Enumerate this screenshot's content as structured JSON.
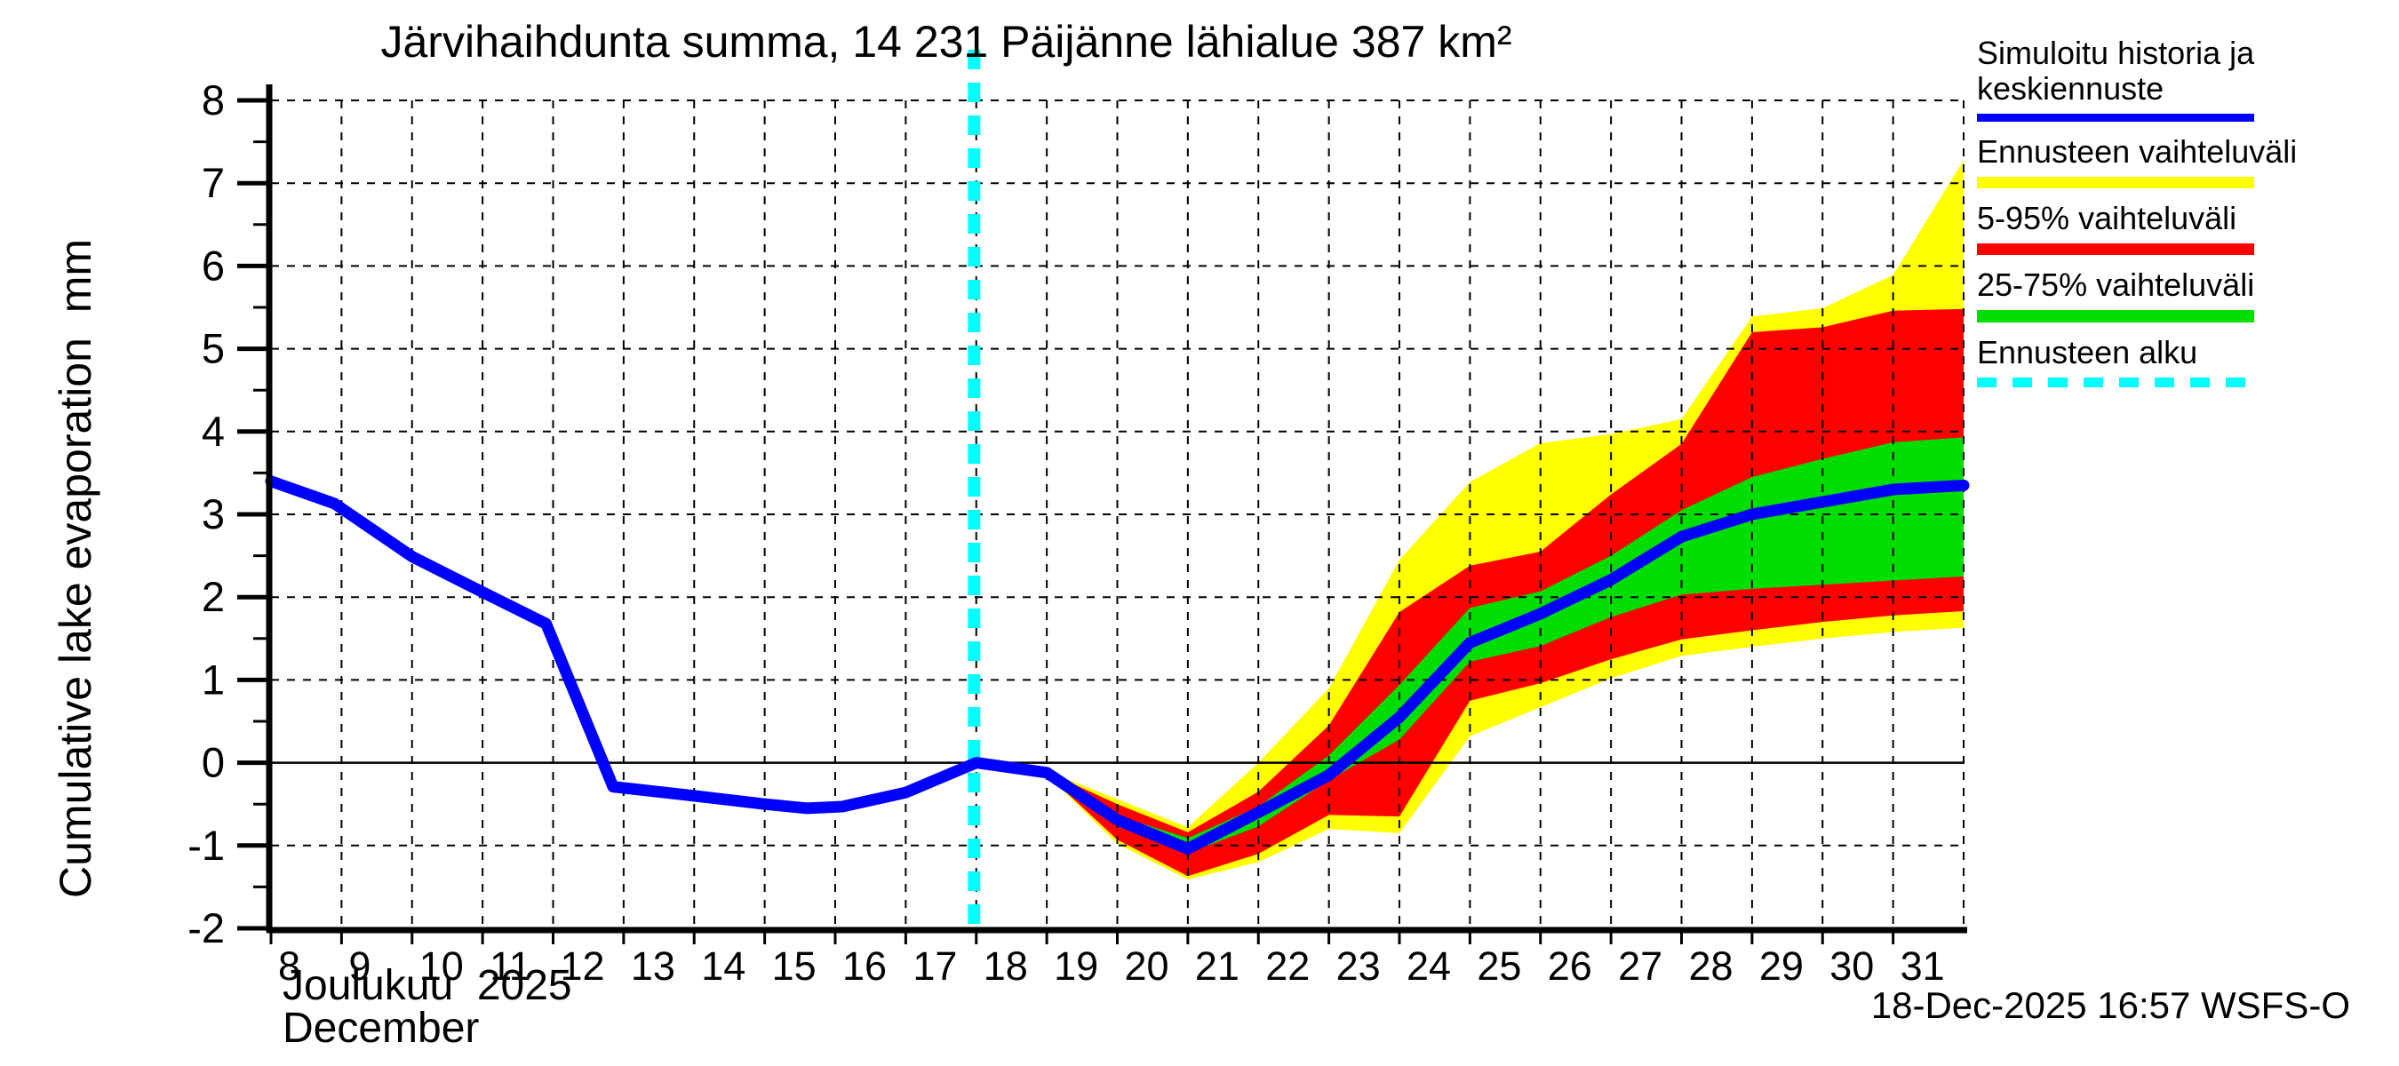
{
  "title": "Järvihaihdunta summa, 14 231 Päijänne lähialue 387 km²",
  "y_axis": {
    "label": "Cumulative lake evaporation  mm",
    "tick_labels": [
      "8",
      "7",
      "6",
      "5",
      "4",
      "3",
      "2",
      "1",
      "0",
      "-1",
      "-2"
    ]
  },
  "x_axis": {
    "month_fi": "Joulukuu  2025",
    "month_en": "December",
    "day_labels": [
      "8",
      "9",
      "10",
      "11",
      "12",
      "13",
      "14",
      "15",
      "16",
      "17",
      "18",
      "19",
      "20",
      "21",
      "22",
      "23",
      "24",
      "25",
      "26",
      "27",
      "28",
      "29",
      "30",
      "31"
    ]
  },
  "legend": {
    "item1_line1": "Simuloitu historia ja",
    "item1_line2": "keskiennuste",
    "item2": "Ennusteen vaihteluväli",
    "item3": "5-95% vaihteluväli",
    "item4": "25-75% vaihteluväli",
    "item5": "Ennusteen alku"
  },
  "footer": {
    "timestamp": "18-Dec-2025 16:57 WSFS-O"
  },
  "chart_data": {
    "type": "area",
    "title": "Järvihaihdunta summa, 14 231 Päijänne lähialue 387 km²",
    "xlabel": "Joulukuu 2025 / December (day of month)",
    "ylabel": "Cumulative lake evaporation mm",
    "xlim": [
      8,
      32
    ],
    "ylim": [
      -2,
      8
    ],
    "grid": true,
    "legend_position": "right",
    "forecast_start_x": 17.97,
    "colors": {
      "median": "#0000ff",
      "minmax": "#ffff00",
      "p5_95": "#ff0000",
      "p25_75": "#00dd00",
      "forecast_start": "#00ffff",
      "grid": "#000000"
    },
    "history": {
      "name": "Simuloitu historia ja keskiennuste",
      "x": [
        8,
        8.9,
        10,
        11,
        11.9,
        12.85,
        14,
        15,
        15.6,
        16.1,
        17,
        18
      ],
      "y": [
        3.4,
        3.13,
        2.49,
        2.06,
        1.68,
        -0.29,
        -0.4,
        -0.5,
        -0.55,
        -0.53,
        -0.36,
        0.0
      ]
    },
    "median": {
      "name": "keskiennuste",
      "x": [
        18,
        19,
        20,
        21,
        22,
        23,
        24,
        25,
        26,
        27,
        28,
        29,
        30,
        31,
        32
      ],
      "y": [
        0.0,
        -0.12,
        -0.69,
        -1.04,
        -0.6,
        -0.15,
        0.55,
        1.45,
        1.8,
        2.21,
        2.73,
        3.0,
        3.15,
        3.3,
        3.35
      ]
    },
    "band_x": [
      19,
      20,
      21,
      22,
      23,
      24,
      25,
      26,
      27,
      28,
      29,
      30,
      31,
      32
    ],
    "band_minmax": {
      "name": "Ennusteen vaihteluväli",
      "upper": [
        -0.1,
        -0.44,
        -0.78,
        0.0,
        0.9,
        2.45,
        3.39,
        3.86,
        3.97,
        4.15,
        5.39,
        5.49,
        5.89,
        7.28
      ],
      "lower": [
        -0.15,
        -0.98,
        -1.41,
        -1.2,
        -0.8,
        -0.85,
        0.32,
        0.67,
        1.02,
        1.29,
        1.4,
        1.5,
        1.58,
        1.63
      ]
    },
    "band_5_95": {
      "name": "5-95% vaihteluväli",
      "upper": [
        -0.11,
        -0.5,
        -0.84,
        -0.35,
        0.45,
        1.82,
        2.38,
        2.55,
        3.24,
        3.85,
        5.2,
        5.26,
        5.46,
        5.48
      ],
      "lower": [
        -0.14,
        -0.93,
        -1.37,
        -1.1,
        -0.63,
        -0.65,
        0.75,
        0.96,
        1.25,
        1.49,
        1.6,
        1.7,
        1.78,
        1.83
      ]
    },
    "band_25_75": {
      "name": "25-75% vaihteluväli",
      "upper": [
        -0.12,
        -0.64,
        -0.91,
        -0.53,
        0.09,
        0.94,
        1.87,
        2.07,
        2.5,
        3.05,
        3.45,
        3.67,
        3.87,
        3.93
      ],
      "lower": [
        -0.13,
        -0.77,
        -1.09,
        -0.77,
        -0.21,
        0.28,
        1.22,
        1.41,
        1.76,
        2.03,
        2.1,
        2.15,
        2.2,
        2.25
      ]
    }
  }
}
